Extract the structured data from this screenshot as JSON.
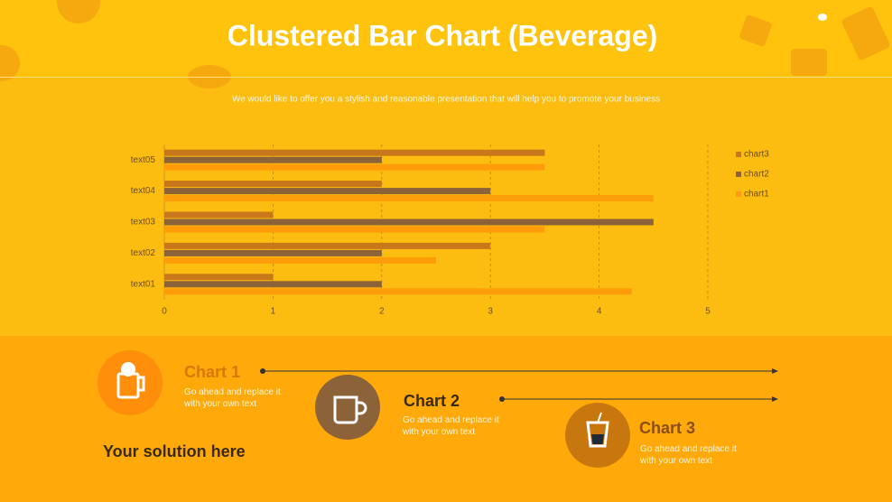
{
  "chart_data": {
    "type": "hbar",
    "title": "Clustered Bar Chart (Beverage)",
    "subtitle": "We would like to offer you a stylish and reasonable presentation that will help you to promote your business",
    "categories": [
      "text01",
      "text02",
      "text03",
      "text04",
      "text05"
    ],
    "series": [
      {
        "name": "chart1",
        "color": "#ff9c0a",
        "values": [
          4.3,
          2.5,
          3.5,
          4.5,
          3.5
        ]
      },
      {
        "name": "chart2",
        "color": "#8c6239",
        "values": [
          2,
          2,
          4.5,
          3,
          2
        ]
      },
      {
        "name": "chart3",
        "color": "#c8781a",
        "values": [
          1,
          3,
          1,
          2,
          3.5
        ]
      }
    ],
    "xlim": [
      0,
      5
    ],
    "xticks": [
      0,
      1,
      2,
      3,
      4,
      5
    ],
    "grid": true,
    "legend": "right"
  },
  "timeline": {
    "items": [
      {
        "title": "Chart 1",
        "text": "Go ahead and replace it with your own text"
      },
      {
        "title": "Chart 2",
        "text": "Go ahead and replace it with your own text"
      },
      {
        "title": "Chart 3",
        "text": "Go ahead and replace it with your own text"
      }
    ],
    "tagline": "Your solution here"
  }
}
